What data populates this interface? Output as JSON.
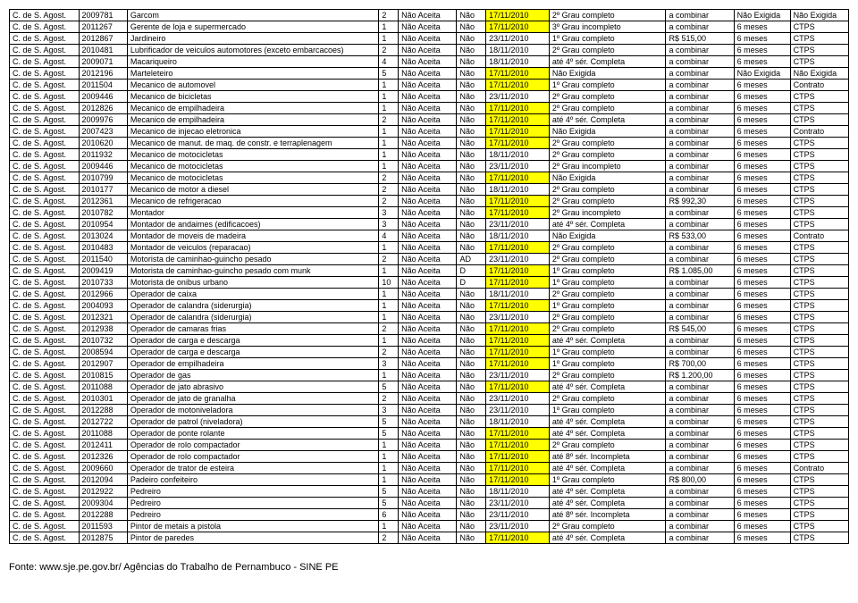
{
  "table": {
    "columns": [
      "col0",
      "col1",
      "col2",
      "col3",
      "col4",
      "col5",
      "col6",
      "col7",
      "col8",
      "col9",
      "col10"
    ],
    "col_widths": [
      "7%",
      "5%",
      "24%",
      "2%",
      "6%",
      "3%",
      "6.5%",
      "12%",
      "7%",
      "5%",
      "6%"
    ],
    "highlight_col": 6,
    "highlight_value": "17/11/2010",
    "rows": [
      [
        "C. de S. Agost.",
        "2009781",
        "Garcom",
        "2",
        "Não Aceita",
        "Não",
        "17/11/2010",
        "2º Grau completo",
        "a combinar",
        "Não Exigida",
        "Não Exigida"
      ],
      [
        "C. de S. Agost.",
        "2011267",
        "Gerente de loja e supermercado",
        "1",
        "Não Aceita",
        "Não",
        "17/11/2010",
        "3º Grau incompleto",
        "a combinar",
        "6 meses",
        "CTPS"
      ],
      [
        "C. de S. Agost.",
        "2012867",
        "Jardineiro",
        "1",
        "Não Aceita",
        "Não",
        "23/11/2010",
        "1º Grau completo",
        "R$ 515,00",
        "6 meses",
        "CTPS"
      ],
      [
        "C. de S. Agost.",
        "2010481",
        "Lubrificador de veiculos automotores (exceto embarcacoes)",
        "2",
        "Não Aceita",
        "Não",
        "18/11/2010",
        "2º Grau completo",
        "a combinar",
        "6 meses",
        "CTPS"
      ],
      [
        "C. de S. Agost.",
        "2009071",
        "Macariqueiro",
        "4",
        "Não Aceita",
        "Não",
        "18/11/2010",
        "até 4º sér. Completa",
        "a combinar",
        "6 meses",
        "CTPS"
      ],
      [
        "C. de S. Agost.",
        "2012196",
        "Marteleteiro",
        "5",
        "Não Aceita",
        "Não",
        "17/11/2010",
        "Não Exigida",
        "a combinar",
        "Não Exigida",
        "Não Exigida"
      ],
      [
        "C. de S. Agost.",
        "2011504",
        "Mecanico de automovel",
        "1",
        "Não Aceita",
        "Não",
        "17/11/2010",
        "1º Grau completo",
        "a combinar",
        "6 meses",
        "Contrato"
      ],
      [
        "C. de S. Agost.",
        "2009446",
        "Mecanico de bicicletas",
        "1",
        "Não Aceita",
        "Não",
        "23/11/2010",
        "2º Grau completo",
        "a combinar",
        "6 meses",
        "CTPS"
      ],
      [
        "C. de S. Agost.",
        "2012826",
        "Mecanico de empilhadeira",
        "1",
        "Não Aceita",
        "Não",
        "17/11/2010",
        "2º Grau completo",
        "a combinar",
        "6 meses",
        "CTPS"
      ],
      [
        "C. de S. Agost.",
        "2009976",
        "Mecanico de empilhadeira",
        "2",
        "Não Aceita",
        "Não",
        "17/11/2010",
        "até 4º sér. Completa",
        "a combinar",
        "6 meses",
        "CTPS"
      ],
      [
        "C. de S. Agost.",
        "2007423",
        "Mecanico de injecao eletronica",
        "1",
        "Não Aceita",
        "Não",
        "17/11/2010",
        "Não Exigida",
        "a combinar",
        "6 meses",
        "Contrato"
      ],
      [
        "C. de S. Agost.",
        "2010620",
        "Mecanico de manut. de maq. de constr. e terraplenagem",
        "1",
        "Não Aceita",
        "Não",
        "17/11/2010",
        "2º Grau completo",
        "a combinar",
        "6 meses",
        "CTPS"
      ],
      [
        "C. de S. Agost.",
        "2011932",
        "Mecanico de motocicletas",
        "1",
        "Não Aceita",
        "Não",
        "18/11/2010",
        "2º Grau completo",
        "a combinar",
        "6 meses",
        "CTPS"
      ],
      [
        "C. de S. Agost.",
        "2009446",
        "Mecanico de motocicletas",
        "1",
        "Não Aceita",
        "Não",
        "23/11/2010",
        "2º Grau incompleto",
        "a combinar",
        "6 meses",
        "CTPS"
      ],
      [
        "C. de S. Agost.",
        "2010799",
        "Mecanico de motocicletas",
        "2",
        "Não Aceita",
        "Não",
        "17/11/2010",
        "Não Exigida",
        "a combinar",
        "6 meses",
        "CTPS"
      ],
      [
        "C. de S. Agost.",
        "2010177",
        "Mecanico de motor a diesel",
        "2",
        "Não Aceita",
        "Não",
        "18/11/2010",
        "2º Grau completo",
        "a combinar",
        "6 meses",
        "CTPS"
      ],
      [
        "C. de S. Agost.",
        "2012361",
        "Mecanico de refrigeracao",
        "2",
        "Não Aceita",
        "Não",
        "17/11/2010",
        "2º Grau completo",
        "R$ 992,30",
        "6 meses",
        "CTPS"
      ],
      [
        "C. de S. Agost.",
        "2010782",
        "Montador",
        "3",
        "Não Aceita",
        "Não",
        "17/11/2010",
        "2º Grau incompleto",
        "a combinar",
        "6 meses",
        "CTPS"
      ],
      [
        "C. de S. Agost.",
        "2010954",
        "Montador de andaimes (edificacoes)",
        "3",
        "Não Aceita",
        "Não",
        "23/11/2010",
        "até 4º sér. Completa",
        "a combinar",
        "6 meses",
        "CTPS"
      ],
      [
        "C. de S. Agost.",
        "2013024",
        "Montador de moveis de madeira",
        "4",
        "Não Aceita",
        "Não",
        "18/11/2010",
        "Não Exigida",
        "R$ 533,00",
        "6 meses",
        "Contrato"
      ],
      [
        "C. de S. Agost.",
        "2010483",
        "Montador de veiculos (reparacao)",
        "1",
        "Não Aceita",
        "Não",
        "17/11/2010",
        "2º Grau completo",
        "a combinar",
        "6 meses",
        "CTPS"
      ],
      [
        "C. de S. Agost.",
        "2011540",
        "Motorista de caminhao-guincho pesado",
        "2",
        "Não Aceita",
        "AD",
        "23/11/2010",
        "2º Grau completo",
        "a combinar",
        "6 meses",
        "CTPS"
      ],
      [
        "C. de S. Agost.",
        "2009419",
        "Motorista de caminhao-guincho pesado com munk",
        "1",
        "Não Aceita",
        "D",
        "17/11/2010",
        "1º Grau completo",
        "R$ 1.085,00",
        "6 meses",
        "CTPS"
      ],
      [
        "C. de S. Agost.",
        "2010733",
        "Motorista de onibus urbano",
        "10",
        "Não Aceita",
        "D",
        "17/11/2010",
        "1º Grau completo",
        "a combinar",
        "6 meses",
        "CTPS"
      ],
      [
        "C. de S. Agost.",
        "2012966",
        "Operador de caixa",
        "1",
        "Não Aceita",
        "Não",
        "18/11/2010",
        "2º Grau completo",
        "a combinar",
        "6 meses",
        "CTPS"
      ],
      [
        "C. de S. Agost.",
        "2004093",
        "Operador de calandra (siderurgia)",
        "1",
        "Não Aceita",
        "Não",
        "17/11/2010",
        "1º Grau completo",
        "a combinar",
        "6 meses",
        "CTPS"
      ],
      [
        "C. de S. Agost.",
        "2012321",
        "Operador de calandra (siderurgia)",
        "1",
        "Não Aceita",
        "Não",
        "23/11/2010",
        "2º Grau completo",
        "a combinar",
        "6 meses",
        "CTPS"
      ],
      [
        "C. de S. Agost.",
        "2012938",
        "Operador de camaras frias",
        "2",
        "Não Aceita",
        "Não",
        "17/11/2010",
        "2º Grau completo",
        "R$ 545,00",
        "6 meses",
        "CTPS"
      ],
      [
        "C. de S. Agost.",
        "2010732",
        "Operador de carga e descarga",
        "1",
        "Não Aceita",
        "Não",
        "17/11/2010",
        "até 4º sér. Completa",
        "a combinar",
        "6 meses",
        "CTPS"
      ],
      [
        "C. de S. Agost.",
        "2008594",
        "Operador de carga e descarga",
        "2",
        "Não Aceita",
        "Não",
        "17/11/2010",
        "1º Grau completo",
        "a combinar",
        "6 meses",
        "CTPS"
      ],
      [
        "C. de S. Agost.",
        "2012907",
        "Operador de empilhadeira",
        "3",
        "Não Aceita",
        "Não",
        "17/11/2010",
        "1º Grau completo",
        "R$ 700,00",
        "6 meses",
        "CTPS"
      ],
      [
        "C. de S. Agost.",
        "2010815",
        "Operador de gas",
        "1",
        "Não Aceita",
        "Não",
        "23/11/2010",
        "2º Grau completo",
        "R$ 1.200,00",
        "6 meses",
        "CTPS"
      ],
      [
        "C. de S. Agost.",
        "2011088",
        "Operador de jato abrasivo",
        "5",
        "Não Aceita",
        "Não",
        "17/11/2010",
        "até 4º sér. Completa",
        "a combinar",
        "6 meses",
        "CTPS"
      ],
      [
        "C. de S. Agost.",
        "2010301",
        "Operador de jato de granalha",
        "2",
        "Não Aceita",
        "Não",
        "23/11/2010",
        "2º Grau completo",
        "a combinar",
        "6 meses",
        "CTPS"
      ],
      [
        "C. de S. Agost.",
        "2012288",
        "Operador de motoniveladora",
        "3",
        "Não Aceita",
        "Não",
        "23/11/2010",
        "1º Grau completo",
        "a combinar",
        "6 meses",
        "CTPS"
      ],
      [
        "C. de S. Agost.",
        "2012722",
        "Operador de patrol (niveladora)",
        "5",
        "Não Aceita",
        "Não",
        "18/11/2010",
        "até 4º sér. Completa",
        "a combinar",
        "6 meses",
        "CTPS"
      ],
      [
        "C. de S. Agost.",
        "2011088",
        "Operador de ponte rolante",
        "5",
        "Não Aceita",
        "Não",
        "17/11/2010",
        "até 4º sér. Completa",
        "a combinar",
        "6 meses",
        "CTPS"
      ],
      [
        "C. de S. Agost.",
        "2012411",
        "Operador de rolo compactador",
        "1",
        "Não Aceita",
        "Não",
        "17/11/2010",
        "2º Grau completo",
        "a combinar",
        "6 meses",
        "CTPS"
      ],
      [
        "C. de S. Agost.",
        "2012326",
        "Operador de rolo compactador",
        "1",
        "Não Aceita",
        "Não",
        "17/11/2010",
        "até 8º sér. Incompleta",
        "a combinar",
        "6 meses",
        "CTPS"
      ],
      [
        "C. de S. Agost.",
        "2009660",
        "Operador de trator de esteira",
        "1",
        "Não Aceita",
        "Não",
        "17/11/2010",
        "até 4º sér. Completa",
        "a combinar",
        "6 meses",
        "Contrato"
      ],
      [
        "C. de S. Agost.",
        "2012094",
        "Padeiro confeiteiro",
        "1",
        "Não Aceita",
        "Não",
        "17/11/2010",
        "1º Grau completo",
        "R$ 800,00",
        "6 meses",
        "CTPS"
      ],
      [
        "C. de S. Agost.",
        "2012922",
        "Pedreiro",
        "5",
        "Não Aceita",
        "Não",
        "18/11/2010",
        "até 4º sér. Completa",
        "a combinar",
        "6 meses",
        "CTPS"
      ],
      [
        "C. de S. Agost.",
        "2009304",
        "Pedreiro",
        "5",
        "Não Aceita",
        "Não",
        "23/11/2010",
        "até 4º sér. Completa",
        "a combinar",
        "6 meses",
        "CTPS"
      ],
      [
        "C. de S. Agost.",
        "2012288",
        "Pedreiro",
        "6",
        "Não Aceita",
        "Não",
        "23/11/2010",
        "até 8º sér. Incompleta",
        "a combinar",
        "6 meses",
        "CTPS"
      ],
      [
        "C. de S. Agost.",
        "2011593",
        "Pintor de metais a pistola",
        "1",
        "Não Aceita",
        "Não",
        "23/11/2010",
        "2º Grau completo",
        "a combinar",
        "6 meses",
        "CTPS"
      ],
      [
        "C. de S. Agost.",
        "2012875",
        "Pintor de paredes",
        "2",
        "Não Aceita",
        "Não",
        "17/11/2010",
        "até 4º sér. Completa",
        "a combinar",
        "6 meses",
        "CTPS"
      ]
    ]
  },
  "footer": "Fonte: www.sje.pe.gov.br/ Agências do Trabalho de Pernambuco - SINE PE"
}
